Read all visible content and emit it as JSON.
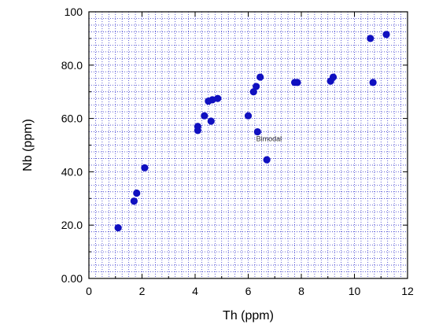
{
  "chart_data": {
    "type": "scatter",
    "title": "",
    "xlabel": "Th  (ppm)",
    "ylabel": "Nb  (ppm)",
    "xlim": [
      0,
      12
    ],
    "ylim": [
      0,
      100
    ],
    "x_ticks": [
      0,
      2,
      4,
      6,
      8,
      10,
      12
    ],
    "x_tick_labels": [
      "0",
      "2",
      "4",
      "6",
      "8",
      "10",
      "12"
    ],
    "y_ticks": [
      0,
      20,
      40,
      60,
      80,
      100
    ],
    "y_tick_labels": [
      "0.00",
      "20.0",
      "40.0",
      "60.0",
      "80.0",
      "100"
    ],
    "x_minor_step": 0.25,
    "y_minor_step": 2.5,
    "grid": true,
    "grid_style": "dotted",
    "grid_color": "#3333cc",
    "marker_color": "#1010c0",
    "annotations": [
      {
        "text": "Bimodal",
        "x": 6.3,
        "y": 51.5
      }
    ],
    "series": [
      {
        "points": [
          {
            "x": 1.1,
            "y": 19
          },
          {
            "x": 1.7,
            "y": 29
          },
          {
            "x": 1.8,
            "y": 32
          },
          {
            "x": 2.1,
            "y": 41.5
          },
          {
            "x": 4.1,
            "y": 55.5
          },
          {
            "x": 4.1,
            "y": 57
          },
          {
            "x": 4.35,
            "y": 61
          },
          {
            "x": 4.5,
            "y": 66.5
          },
          {
            "x": 4.6,
            "y": 59
          },
          {
            "x": 4.65,
            "y": 67
          },
          {
            "x": 4.85,
            "y": 67.5
          },
          {
            "x": 6.0,
            "y": 61
          },
          {
            "x": 6.2,
            "y": 70
          },
          {
            "x": 6.3,
            "y": 72
          },
          {
            "x": 6.35,
            "y": 55
          },
          {
            "x": 6.45,
            "y": 75.5
          },
          {
            "x": 6.7,
            "y": 44.5
          },
          {
            "x": 7.75,
            "y": 73.5
          },
          {
            "x": 7.85,
            "y": 73.5
          },
          {
            "x": 9.1,
            "y": 74
          },
          {
            "x": 9.2,
            "y": 75.5
          },
          {
            "x": 10.6,
            "y": 90
          },
          {
            "x": 10.7,
            "y": 73.5
          },
          {
            "x": 11.2,
            "y": 91.5
          }
        ]
      }
    ]
  }
}
